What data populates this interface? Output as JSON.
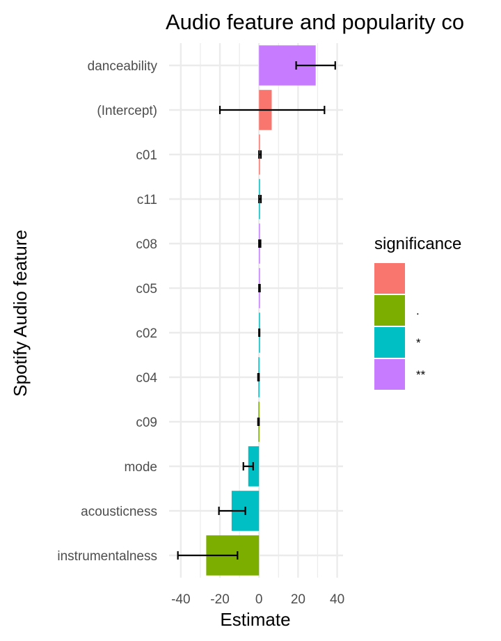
{
  "chart_data": {
    "type": "bar",
    "orientation": "horizontal",
    "title": "Audio feature and popularity co",
    "xlabel": "Estimate",
    "ylabel": "Spotify Audio feature",
    "xlim": [
      -46,
      43
    ],
    "xticks": [
      -40,
      -20,
      0,
      20,
      40
    ],
    "xtick_labels": [
      "-40",
      "-20",
      "0",
      "20",
      "40"
    ],
    "grid": true,
    "legend": {
      "title": "significance",
      "position": "right",
      "entries": [
        {
          "label": "",
          "color": "#F8766D"
        },
        {
          "label": ".",
          "color": "#7CAE00"
        },
        {
          "label": "*",
          "color": "#00BFC4"
        },
        {
          "label": "**",
          "color": "#C77CFF"
        }
      ]
    },
    "categories": [
      "danceability",
      "(Intercept)",
      "c01",
      "c11",
      "c08",
      "c05",
      "c02",
      "c04",
      "c09",
      "mode",
      "acousticness",
      "instrumentalness"
    ],
    "values": [
      29,
      6.5,
      0.5,
      0.5,
      0.5,
      0.3,
      0.2,
      -0.3,
      -0.3,
      -5.5,
      -14,
      -27
    ],
    "error_low": [
      19,
      -20,
      0,
      0,
      0,
      0,
      0,
      -0.5,
      -0.5,
      -8,
      -20.5,
      -41.5
    ],
    "error_high": [
      39,
      33.5,
      1,
      1,
      0.8,
      0.5,
      0.3,
      0,
      0,
      -3,
      -7,
      -11
    ],
    "significance": [
      "**",
      "",
      "",
      "*",
      "**",
      "**",
      "*",
      "*",
      ".",
      "*",
      "*",
      "."
    ]
  }
}
